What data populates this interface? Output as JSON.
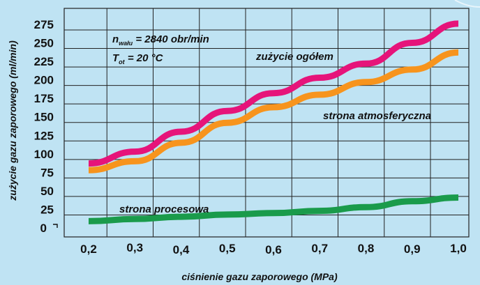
{
  "chart_data": {
    "type": "line",
    "xlabel": "ciśnienie gazu zaporowego (MPa)",
    "ylabel": "zużycie gazu zaporowego (ml/min)",
    "xlim": [
      0.2,
      1.0
    ],
    "ylim": [
      0,
      285
    ],
    "x_tick_labels": [
      "0,2",
      "0,3",
      "0,4",
      "0,5",
      "0,6",
      "0,7",
      "0,8",
      "0,9",
      "1,0"
    ],
    "y_tick_labels": [
      "0",
      "25",
      "50",
      "75",
      "100",
      "125",
      "150",
      "175",
      "200",
      "225",
      "250",
      "275"
    ],
    "y_tick_values": [
      0,
      25,
      50,
      75,
      100,
      125,
      150,
      175,
      200,
      225,
      250,
      275
    ],
    "grid": true,
    "annotations": {
      "speed_symbol": "n",
      "speed_subscript": "wału",
      "speed_value": " = 2840 obr/min",
      "temp_symbol": "T",
      "temp_subscript": "ot",
      "temp_value": " = 20 °C"
    },
    "series": [
      {
        "name": "zużycie ogółem",
        "color": "#e6147a",
        "x": [
          0.2,
          0.3,
          0.4,
          0.5,
          0.6,
          0.7,
          0.8,
          0.9,
          1.0
        ],
        "y": [
          87,
          103,
          130,
          158,
          182,
          203,
          222,
          250,
          276
        ]
      },
      {
        "name": "strona atmosferyczna",
        "color": "#f7941d",
        "x": [
          0.2,
          0.3,
          0.4,
          0.5,
          0.6,
          0.7,
          0.8,
          0.9,
          1.0
        ],
        "y": [
          78,
          90,
          115,
          142,
          163,
          180,
          197,
          214,
          237
        ]
      },
      {
        "name": "strona procesowa",
        "color": "#1a9b4b",
        "x": [
          0.2,
          0.3,
          0.4,
          0.5,
          0.6,
          0.7,
          0.8,
          0.9,
          1.0
        ],
        "y": [
          9,
          12,
          15,
          18,
          20,
          23,
          28,
          36,
          41
        ]
      }
    ]
  }
}
